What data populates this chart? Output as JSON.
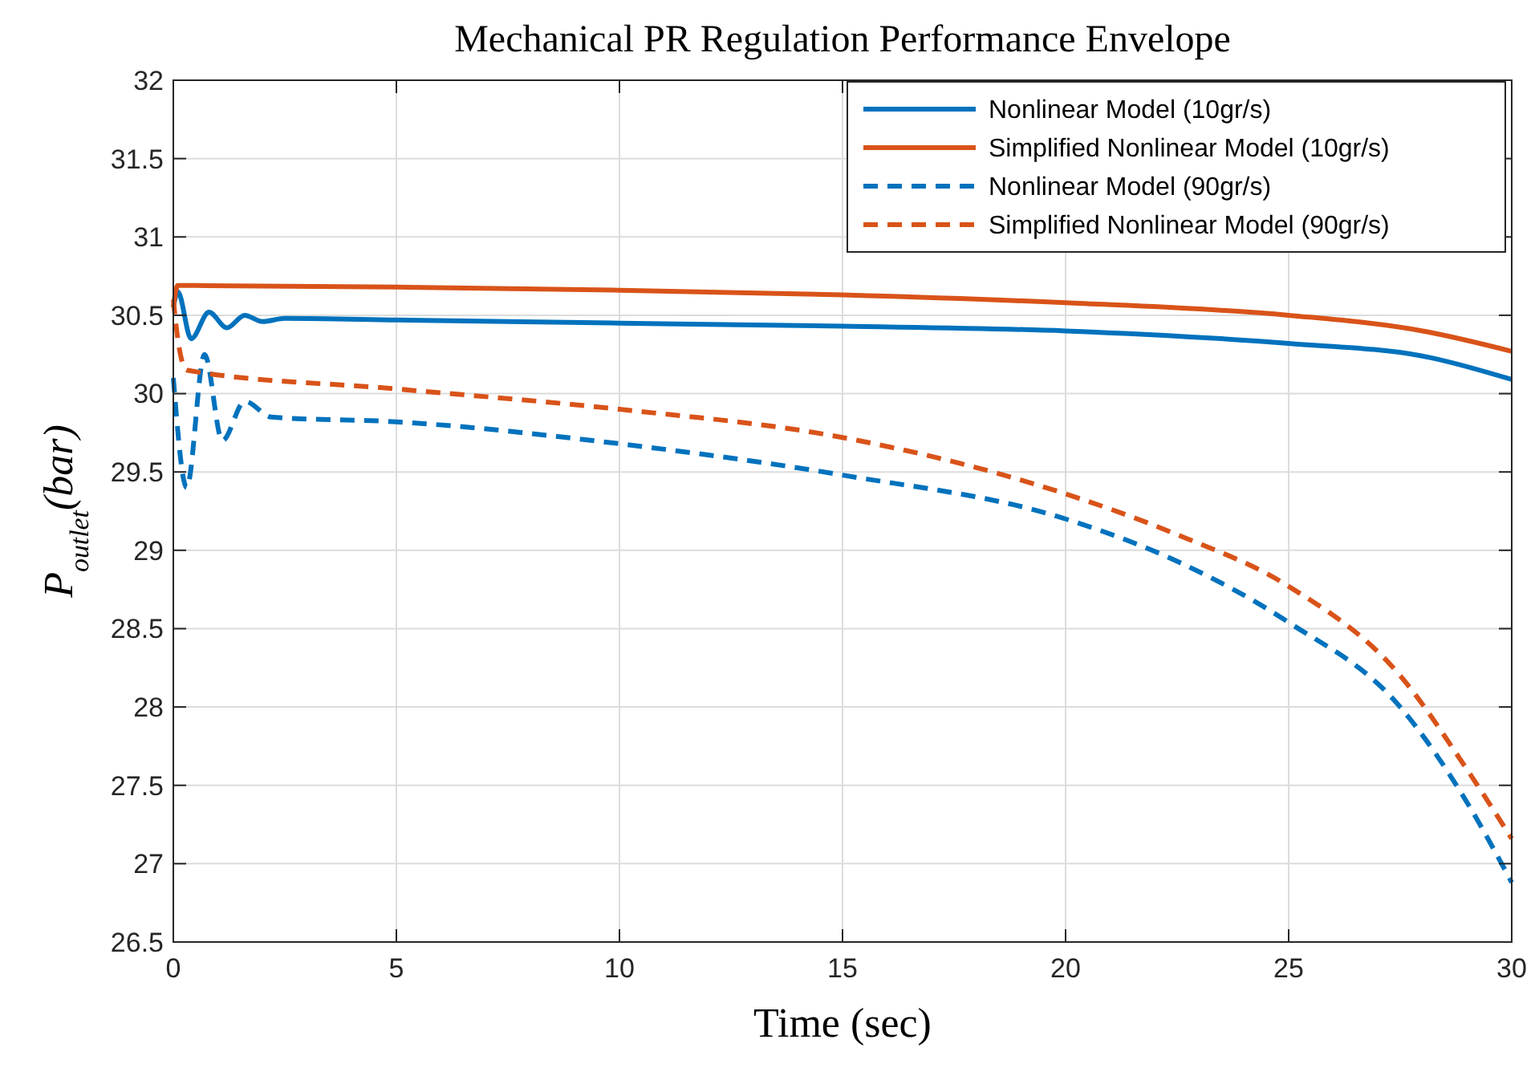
{
  "chart_data": {
    "type": "line",
    "title": "Mechanical PR Regulation Performance Envelope",
    "xlabel": "Time (sec)",
    "ylabel": "P$_{outlet}$(bar)",
    "xlim": [
      0,
      30
    ],
    "xticks": [
      0,
      5,
      10,
      15,
      20,
      25,
      30
    ],
    "ylim": [
      26.5,
      32
    ],
    "yticks": [
      26.5,
      27,
      27.5,
      28,
      28.5,
      29,
      29.5,
      30,
      30.5,
      31,
      31.5,
      32
    ],
    "grid": true,
    "legend": "top right",
    "line_style": "solid",
    "series": [
      {
        "name": "Nonlinear Model (10gr/s)",
        "color": "#0072bd",
        "x": [
          0,
          0.1,
          0.4,
          0.8,
          1.2,
          1.6,
          2,
          2.5,
          5,
          10,
          15,
          20,
          25,
          28,
          30
        ],
        "values": [
          30.55,
          30.65,
          30.35,
          30.52,
          30.42,
          30.5,
          30.46,
          30.48,
          30.47,
          30.45,
          30.43,
          30.4,
          30.32,
          30.24,
          30.09
        ]
      },
      {
        "name": "Simplified Nonlinear Model (10gr/s)",
        "color": "#d95319",
        "x": [
          0,
          0.1,
          5,
          10,
          15,
          20,
          25,
          28,
          30
        ],
        "values": [
          30.55,
          30.69,
          30.68,
          30.66,
          30.63,
          30.58,
          30.5,
          30.4,
          30.27
        ]
      },
      {
        "name": "Nonlinear Model (90gr/s)",
        "color": "#0072bd",
        "line_style": "dashed",
        "x": [
          0,
          0.3,
          0.7,
          1.1,
          1.6,
          2.2,
          5,
          10,
          15,
          20,
          22.5,
          25,
          27.5,
          29,
          30
        ],
        "values": [
          30.1,
          29.4,
          30.25,
          29.7,
          29.95,
          29.85,
          29.82,
          29.68,
          29.48,
          29.2,
          28.93,
          28.54,
          28.0,
          27.39,
          26.88
        ]
      },
      {
        "name": "Simplified Nonlinear Model (90gr/s)",
        "color": "#d95319",
        "line_style": "dashed",
        "x": [
          0,
          0.1,
          0.3,
          5,
          10,
          15,
          20,
          22.5,
          25,
          27.5,
          29,
          30
        ],
        "values": [
          30.6,
          30.35,
          30.15,
          30.03,
          29.9,
          29.72,
          29.36,
          29.1,
          28.77,
          28.2,
          27.6,
          27.16
        ]
      }
    ]
  }
}
